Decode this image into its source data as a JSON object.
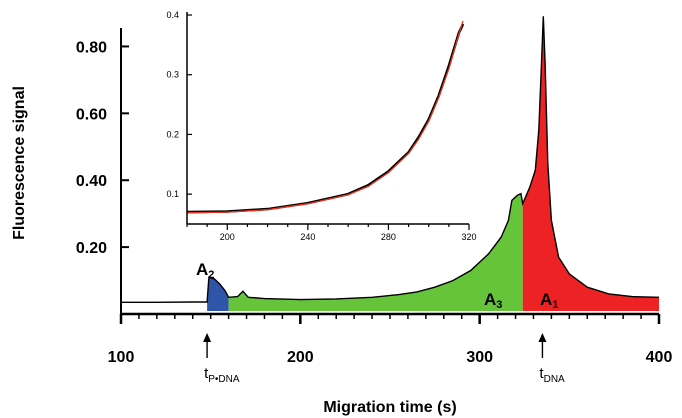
{
  "chart_data": [
    {
      "type": "area",
      "xlabel": "Migration time (s)",
      "ylabel": "Fluorescence signal",
      "xlim": [
        100,
        400
      ],
      "ylim": [
        0.0,
        0.9
      ],
      "x_ticks": [
        "100",
        "200",
        "300",
        "400"
      ],
      "y_ticks": [
        "0.20",
        "0.40",
        "0.60",
        "0.80"
      ],
      "grid": false,
      "signal": [
        [
          100,
          0.035
        ],
        [
          120,
          0.035
        ],
        [
          140,
          0.036
        ],
        [
          148,
          0.036
        ],
        [
          149,
          0.11
        ],
        [
          152,
          0.105
        ],
        [
          155,
          0.09
        ],
        [
          158,
          0.07
        ],
        [
          160,
          0.05
        ],
        [
          165,
          0.052
        ],
        [
          168,
          0.068
        ],
        [
          171,
          0.05
        ],
        [
          180,
          0.046
        ],
        [
          200,
          0.043
        ],
        [
          220,
          0.045
        ],
        [
          240,
          0.05
        ],
        [
          255,
          0.058
        ],
        [
          265,
          0.066
        ],
        [
          275,
          0.08
        ],
        [
          285,
          0.1
        ],
        [
          295,
          0.13
        ],
        [
          305,
          0.18
        ],
        [
          312,
          0.23
        ],
        [
          316,
          0.28
        ],
        [
          318,
          0.34
        ],
        [
          321,
          0.355
        ],
        [
          323,
          0.36
        ],
        [
          324,
          0.33
        ],
        [
          328,
          0.38
        ],
        [
          331,
          0.43
        ],
        [
          333,
          0.55
        ],
        [
          334.5,
          0.75
        ],
        [
          335.5,
          0.89
        ],
        [
          336.5,
          0.75
        ],
        [
          338,
          0.45
        ],
        [
          340,
          0.28
        ],
        [
          344,
          0.17
        ],
        [
          350,
          0.12
        ],
        [
          360,
          0.08
        ],
        [
          372,
          0.06
        ],
        [
          385,
          0.052
        ],
        [
          400,
          0.05
        ]
      ],
      "regions": [
        {
          "label": "A",
          "subscript": "2",
          "x_range": [
            148,
            160
          ],
          "color": "#2f55a8"
        },
        {
          "label": "A",
          "subscript": "3",
          "x_range": [
            160,
            324
          ],
          "color": "#66c43a"
        },
        {
          "label": "A",
          "subscript": "1",
          "x_range": [
            324,
            400
          ],
          "color": "#ed2224"
        }
      ],
      "markers": [
        {
          "label": "t",
          "subscript": "P•DNA",
          "x": 148
        },
        {
          "label": "t",
          "subscript": "DNA",
          "x": 335
        }
      ]
    },
    {
      "type": "line",
      "xlim": [
        180,
        320
      ],
      "ylim": [
        0.05,
        0.4
      ],
      "x_ticks": [
        "200",
        "240",
        "280",
        "320"
      ],
      "y_ticks": [
        "0.1",
        "0.2",
        "0.3",
        "0.4"
      ],
      "series": [
        {
          "values": [
            [
              180,
              0.07
            ],
            [
              200,
              0.071
            ],
            [
              220,
              0.075
            ],
            [
              240,
              0.085
            ],
            [
              260,
              0.1
            ],
            [
              270,
              0.115
            ],
            [
              280,
              0.138
            ],
            [
              290,
              0.17
            ],
            [
              295,
              0.195
            ],
            [
              300,
              0.225
            ],
            [
              305,
              0.265
            ],
            [
              310,
              0.315
            ],
            [
              315,
              0.37
            ],
            [
              317,
              0.385
            ]
          ],
          "color": "#000000"
        },
        {
          "values": [
            [
              180,
              0.069
            ],
            [
              200,
              0.07
            ],
            [
              220,
              0.074
            ],
            [
              240,
              0.084
            ],
            [
              260,
              0.099
            ],
            [
              270,
              0.113
            ],
            [
              280,
              0.136
            ],
            [
              290,
              0.168
            ],
            [
              295,
              0.192
            ],
            [
              300,
              0.222
            ],
            [
              305,
              0.262
            ],
            [
              310,
              0.31
            ],
            [
              315,
              0.368
            ],
            [
              317,
              0.39
            ]
          ],
          "color": "#e8321e"
        }
      ]
    }
  ]
}
